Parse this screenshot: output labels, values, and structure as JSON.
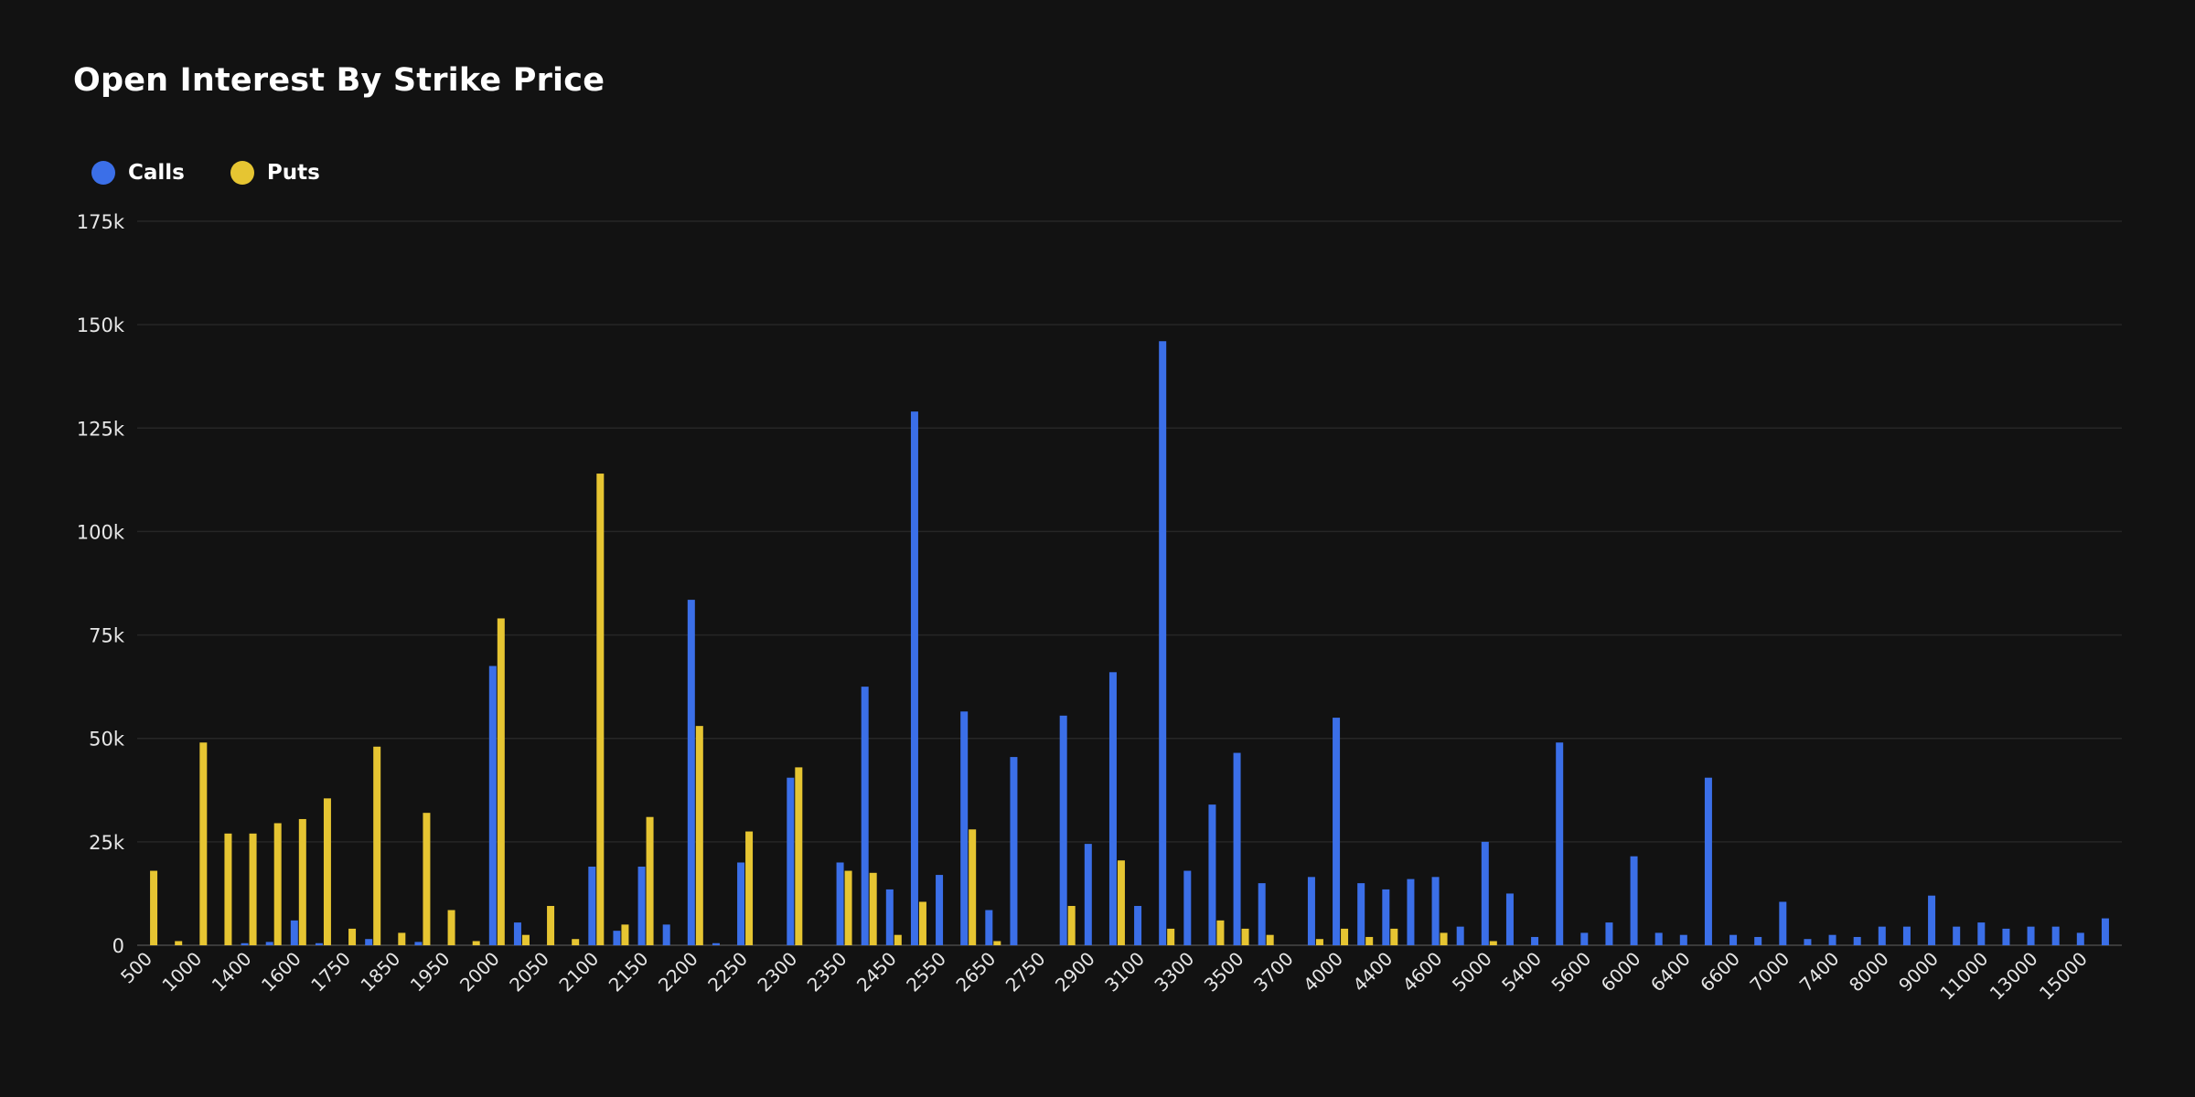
{
  "chart_data": {
    "type": "bar",
    "title": "Open Interest By Strike Price",
    "xlabel": "",
    "ylabel": "",
    "ylim": [
      0,
      175000
    ],
    "yticks": [
      {
        "value": 0,
        "label": "0"
      },
      {
        "value": 25000,
        "label": "25k"
      },
      {
        "value": 50000,
        "label": "50k"
      },
      {
        "value": 75000,
        "label": "75k"
      },
      {
        "value": 100000,
        "label": "100k"
      },
      {
        "value": 125000,
        "label": "125k"
      },
      {
        "value": 150000,
        "label": "150k"
      },
      {
        "value": 175000,
        "label": "175k"
      }
    ],
    "grid": true,
    "legend_position": "top-left",
    "categories": [
      "500",
      "",
      "1000",
      "",
      "1400",
      "",
      "1600",
      "",
      "1750",
      "",
      "1850",
      "",
      "1950",
      "",
      "2000",
      "",
      "2050",
      "",
      "2100",
      "",
      "2150",
      "",
      "2200",
      "",
      "2250",
      "",
      "2300",
      "",
      "2350",
      "",
      "2450",
      "",
      "2550",
      "",
      "2650",
      "",
      "2750",
      "",
      "2900",
      "",
      "3100",
      "",
      "3300",
      "",
      "3500",
      "",
      "3700",
      "",
      "4000",
      "",
      "4400",
      "",
      "4600",
      "",
      "5000",
      "",
      "5400",
      "",
      "5600",
      "",
      "6000",
      "",
      "6400",
      "",
      "6600",
      "",
      "7000",
      "",
      "7400",
      "",
      "8000",
      "",
      "9000",
      "",
      "11000",
      "",
      "13000",
      "",
      "15000",
      ""
    ],
    "series": [
      {
        "name": "Calls",
        "color": "#3b6fe8",
        "values": [
          0,
          0,
          0,
          0,
          500,
          800,
          6000,
          500,
          0,
          1500,
          0,
          800,
          0,
          0,
          67500,
          5500,
          0,
          0,
          19000,
          3500,
          19000,
          5000,
          83500,
          500,
          20000,
          0,
          40500,
          0,
          20000,
          62500,
          13500,
          129000,
          17000,
          56500,
          8500,
          45500,
          0,
          55500,
          24500,
          66000,
          9500,
          146000,
          18000,
          34000,
          46500,
          15000,
          0,
          16500,
          55000,
          15000,
          13500,
          16000,
          16500,
          4500,
          25000,
          12500,
          2000,
          49000,
          3000,
          5500,
          21500,
          3000,
          2500,
          40500,
          2500,
          2000,
          10500,
          1500,
          2500,
          2000,
          4500,
          4500,
          12000,
          4500,
          5500,
          4000,
          4500,
          4500,
          3000,
          6500
        ]
      },
      {
        "name": "Puts",
        "color": "#e6c532",
        "values": [
          18000,
          1000,
          49000,
          27000,
          27000,
          29500,
          30500,
          35500,
          4000,
          48000,
          3000,
          32000,
          8500,
          1000,
          79000,
          2500,
          9500,
          1500,
          114000,
          5000,
          31000,
          0,
          53000,
          0,
          27500,
          0,
          43000,
          0,
          18000,
          17500,
          2500,
          10500,
          0,
          28000,
          1000,
          0,
          0,
          9500,
          0,
          20500,
          0,
          4000,
          0,
          6000,
          4000,
          2500,
          0,
          1500,
          4000,
          2000,
          4000,
          0,
          3000,
          0,
          1000,
          0,
          0,
          0,
          0,
          0,
          0,
          0,
          0,
          0,
          0,
          0,
          0,
          0,
          0,
          0,
          0,
          0,
          0,
          0,
          0,
          0,
          0,
          0,
          0,
          0
        ]
      }
    ]
  }
}
